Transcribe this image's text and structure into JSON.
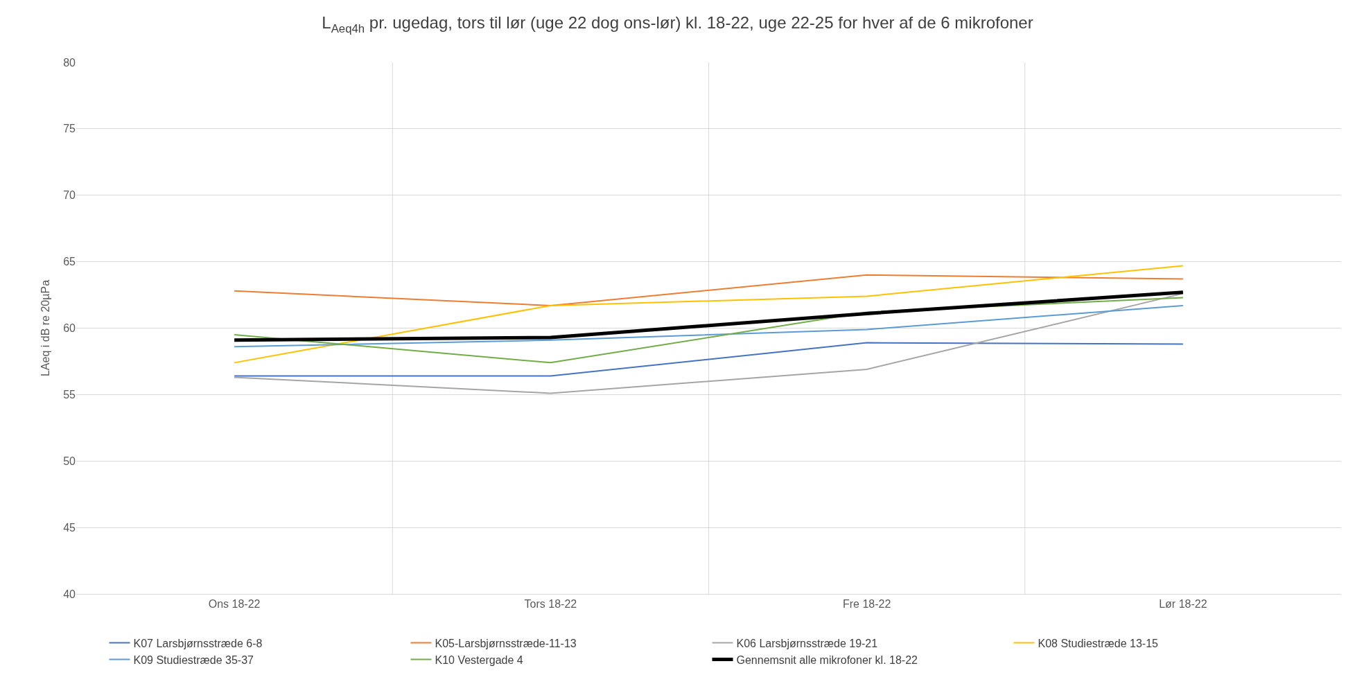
{
  "chart_data": {
    "type": "line",
    "title": "L$_{Aeq4h}$ pr. ugedag, tors til lør (uge 22 dog ons-lør) kl. 18-22, uge 22-25 for hver af de 6 mikrofoner",
    "ylabel": "LAeq i dB re 20µPa",
    "categories": [
      "Ons 18-22",
      "Tors 18-22",
      "Fre 18-22",
      "Lør 18-22"
    ],
    "series": [
      {
        "name": "K07 Larsbjørnsstræde 6-8",
        "color": "#4472c4",
        "values": [
          56.4,
          56.4,
          58.9,
          58.8
        ]
      },
      {
        "name": "K05-Larsbjørnsstræde-11-13",
        "color": "#ed7d31",
        "values": [
          62.8,
          61.7,
          64.0,
          63.7
        ]
      },
      {
        "name": "K06 Larsbjørnsstræde 19-21",
        "color": "#a5a5a5",
        "values": [
          56.3,
          55.1,
          56.9,
          62.6
        ]
      },
      {
        "name": "K08 Studiestræde 13-15",
        "color": "#ffc000",
        "values": [
          57.4,
          61.7,
          62.4,
          64.7
        ]
      },
      {
        "name": "K09 Studiestræde 35-37",
        "color": "#5b9bd5",
        "values": [
          58.6,
          59.1,
          59.9,
          61.7
        ]
      },
      {
        "name": "K10 Vestergade 4",
        "color": "#70ad47",
        "values": [
          59.5,
          57.4,
          61.2,
          62.3
        ]
      },
      {
        "name": "Gennemsnit alle mikrofoner kl. 18-22",
        "color": "#000000",
        "values": [
          59.1,
          59.3,
          61.1,
          62.7
        ]
      }
    ],
    "ylim": [
      40,
      80
    ],
    "yticks": [
      40,
      45,
      50,
      55,
      60,
      65,
      70,
      75,
      80
    ],
    "grid": true,
    "legend": "bottom",
    "marker": "none",
    "line_style": "solid"
  }
}
